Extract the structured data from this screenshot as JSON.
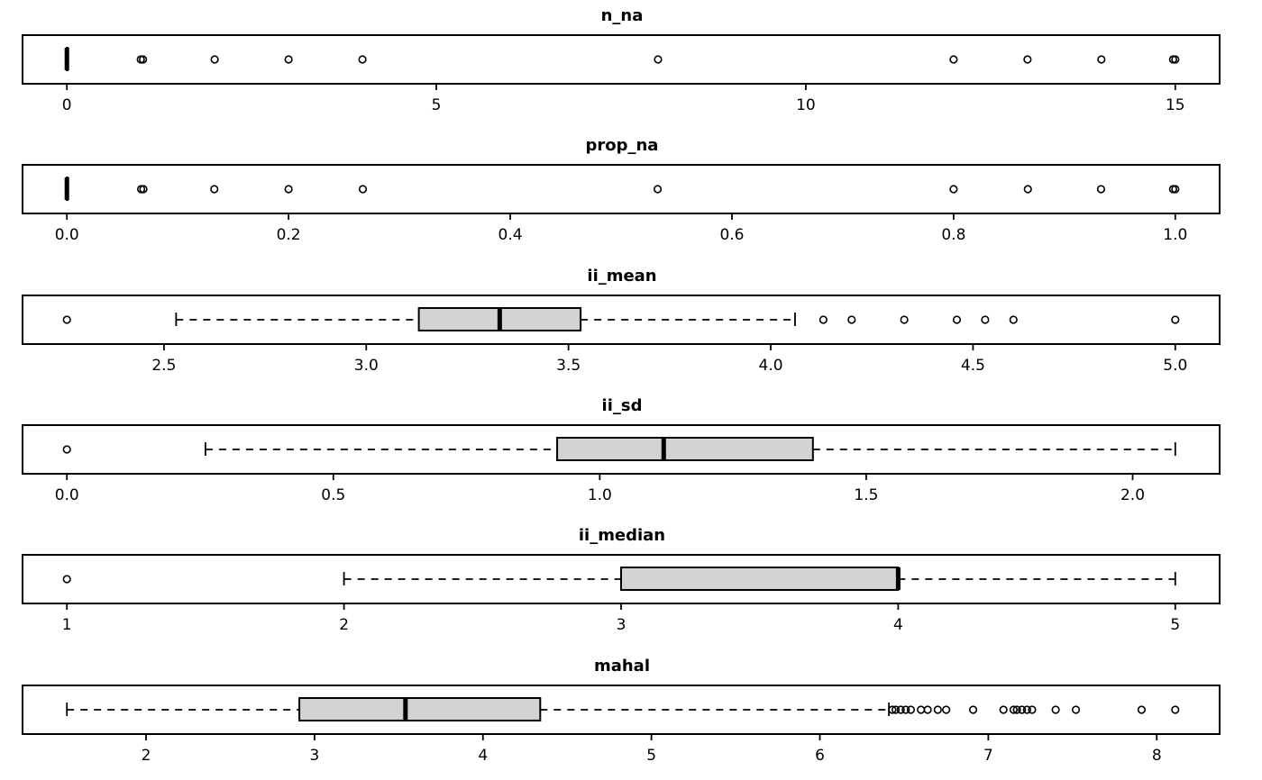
{
  "figure": {
    "background_color": "#ffffff",
    "line_color": "#000000",
    "box_fill_color": "#d3d3d3",
    "panel_count": 6
  },
  "chart_data": [
    {
      "type": "boxplot",
      "orientation": "horizontal",
      "title": "n_na",
      "data_range": [
        0,
        15
      ],
      "ticks": [
        0,
        5,
        10,
        15
      ],
      "tick_labels": [
        "0",
        "5",
        "10",
        "15"
      ],
      "stats": {
        "whisker_lo": 0,
        "q1": 0,
        "median": 0,
        "q3": 0,
        "whisker_hi": 0
      },
      "outliers": [
        1,
        1.03,
        2,
        3,
        4,
        8,
        12,
        13,
        14,
        14.97,
        15
      ],
      "grid": false
    },
    {
      "type": "boxplot",
      "orientation": "horizontal",
      "title": "prop_na",
      "data_range": [
        0,
        1
      ],
      "ticks": [
        0,
        0.2,
        0.4,
        0.6,
        0.8,
        1.0
      ],
      "tick_labels": [
        "0.0",
        "0.2",
        "0.4",
        "0.6",
        "0.8",
        "1.0"
      ],
      "stats": {
        "whisker_lo": 0,
        "q1": 0,
        "median": 0,
        "q3": 0,
        "whisker_hi": 0
      },
      "outliers": [
        0.067,
        0.069,
        0.133,
        0.2,
        0.267,
        0.533,
        0.8,
        0.867,
        0.933,
        0.998,
        1.0
      ],
      "grid": false
    },
    {
      "type": "boxplot",
      "orientation": "horizontal",
      "title": "ii_mean",
      "data_range": [
        2.26,
        5.0
      ],
      "ticks": [
        2.5,
        3.0,
        3.5,
        4.0,
        4.5,
        5.0
      ],
      "tick_labels": [
        "2.5",
        "3.0",
        "3.5",
        "4.0",
        "4.5",
        "5.0"
      ],
      "stats": {
        "whisker_lo": 2.53,
        "q1": 3.13,
        "median": 3.33,
        "q3": 3.53,
        "whisker_hi": 4.06
      },
      "outliers": [
        2.26,
        4.13,
        4.2,
        4.33,
        4.46,
        4.53,
        4.6,
        5.0
      ],
      "grid": false
    },
    {
      "type": "boxplot",
      "orientation": "horizontal",
      "title": "ii_sd",
      "data_range": [
        0,
        2.08
      ],
      "ticks": [
        0,
        0.5,
        1.0,
        1.5,
        2.0
      ],
      "tick_labels": [
        "0.0",
        "0.5",
        "1.0",
        "1.5",
        "2.0"
      ],
      "stats": {
        "whisker_lo": 0.26,
        "q1": 0.92,
        "median": 1.12,
        "q3": 1.4,
        "whisker_hi": 2.08
      },
      "outliers": [
        0
      ],
      "grid": false
    },
    {
      "type": "boxplot",
      "orientation": "horizontal",
      "title": "ii_median",
      "data_range": [
        1,
        5
      ],
      "ticks": [
        1,
        2,
        3,
        4,
        5
      ],
      "tick_labels": [
        "1",
        "2",
        "3",
        "4",
        "5"
      ],
      "stats": {
        "whisker_lo": 2,
        "q1": 3,
        "median": 4,
        "q3": 4,
        "whisker_hi": 5
      },
      "outliers": [
        1
      ],
      "grid": false
    },
    {
      "type": "boxplot",
      "orientation": "horizontal",
      "title": "mahal",
      "data_range": [
        1.53,
        8.11
      ],
      "ticks": [
        2,
        3,
        4,
        5,
        6,
        7,
        8
      ],
      "tick_labels": [
        "2",
        "3",
        "4",
        "5",
        "6",
        "7",
        "8"
      ],
      "stats": {
        "whisker_lo": 1.53,
        "q1": 2.91,
        "median": 3.54,
        "q3": 4.34,
        "whisker_hi": 6.41
      },
      "outliers": [
        6.43,
        6.45,
        6.48,
        6.51,
        6.54,
        6.6,
        6.64,
        6.7,
        6.75,
        6.91,
        7.09,
        7.15,
        7.17,
        7.2,
        7.23,
        7.26,
        7.4,
        7.52,
        7.91,
        8.11
      ],
      "grid": false
    }
  ]
}
